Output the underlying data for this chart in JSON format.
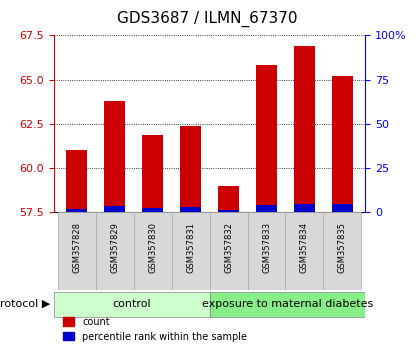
{
  "title": "GDS3687 / ILMN_67370",
  "samples": [
    "GSM357828",
    "GSM357829",
    "GSM357830",
    "GSM357831",
    "GSM357832",
    "GSM357833",
    "GSM357834",
    "GSM357835"
  ],
  "count_values": [
    61.0,
    63.8,
    61.9,
    62.4,
    59.0,
    65.8,
    66.9,
    65.2
  ],
  "percentile_values": [
    2.0,
    3.5,
    2.5,
    3.0,
    1.5,
    4.0,
    4.5,
    4.5
  ],
  "ylim_left": [
    57.5,
    67.5
  ],
  "ylim_right": [
    0,
    100
  ],
  "yticks_left": [
    57.5,
    60.0,
    62.5,
    65.0,
    67.5
  ],
  "yticks_right": [
    0,
    25,
    50,
    75,
    100
  ],
  "bar_color_red": "#cc0000",
  "bar_color_blue": "#0000cc",
  "n_control": 4,
  "n_exposure": 4,
  "control_label": "control",
  "exposure_label": "exposure to maternal diabetes",
  "protocol_label": "protocol",
  "legend_count": "count",
  "legend_percentile": "percentile rank within the sample",
  "control_color": "#ccffcc",
  "exposure_color": "#88ee88",
  "left_axis_color": "#cc0000",
  "right_axis_color": "#0000ff",
  "title_fontsize": 11,
  "tick_fontsize": 8,
  "bar_bottom": 57.5,
  "sample_label_fontsize": 6,
  "protocol_fontsize": 8
}
